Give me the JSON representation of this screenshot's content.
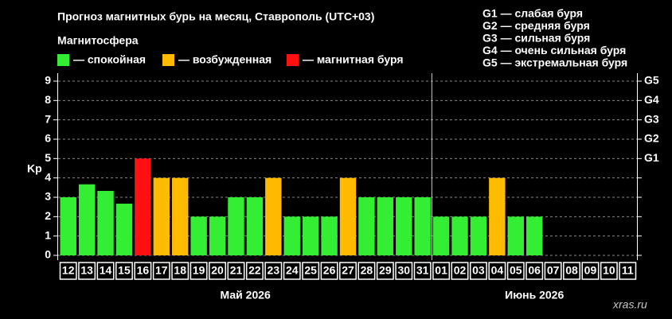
{
  "chart_data": {
    "type": "bar",
    "title": "Прогноз магнитных бурь на месяц, Ставрополь (UTC+03)",
    "legend_title": "Магнитосфера",
    "legend": [
      {
        "label": "— спокойная",
        "color": "#33ee33"
      },
      {
        "label": "— возбужденная",
        "color": "#ffbb00"
      },
      {
        "label": "— магнитная буря",
        "color": "#ff1111"
      }
    ],
    "storm_scale": [
      "G1 — слабая буря",
      "G2 — средняя буря",
      "G3 — сильная буря",
      "G4 — очень сильная буря",
      "G5 — экстремальная буря"
    ],
    "ylabel": "Kp",
    "categories": [
      "12",
      "13",
      "14",
      "15",
      "16",
      "17",
      "18",
      "19",
      "20",
      "21",
      "22",
      "23",
      "24",
      "25",
      "26",
      "27",
      "28",
      "29",
      "30",
      "31",
      "01",
      "02",
      "03",
      "04",
      "05",
      "06",
      "07",
      "08",
      "09",
      "10",
      "11"
    ],
    "values": [
      3,
      3.67,
      3.33,
      2.67,
      5,
      4,
      4,
      2,
      2,
      3,
      3,
      4,
      2,
      2,
      2,
      4,
      3,
      3,
      3,
      3,
      2,
      2,
      2,
      4,
      2,
      2,
      null,
      null,
      null,
      null,
      null
    ],
    "colors": [
      "#33ee33",
      "#33ee33",
      "#33ee33",
      "#33ee33",
      "#ff1111",
      "#ffbb00",
      "#ffbb00",
      "#33ee33",
      "#33ee33",
      "#33ee33",
      "#33ee33",
      "#ffbb00",
      "#33ee33",
      "#33ee33",
      "#33ee33",
      "#ffbb00",
      "#33ee33",
      "#33ee33",
      "#33ee33",
      "#33ee33",
      "#33ee33",
      "#33ee33",
      "#33ee33",
      "#ffbb00",
      "#33ee33",
      "#33ee33",
      null,
      null,
      null,
      null,
      null
    ],
    "months": [
      "Май 2026",
      "Июнь 2026"
    ],
    "ylim": [
      0,
      9
    ],
    "yticks": [
      0,
      1,
      2,
      3,
      4,
      5,
      6,
      7,
      8,
      9
    ],
    "y2lim": [
      0,
      9
    ],
    "y2ticks": [
      {
        "value": 5,
        "label": "G1"
      },
      {
        "value": 6,
        "label": "G2"
      },
      {
        "value": 7,
        "label": "G3"
      },
      {
        "value": 8,
        "label": "G4"
      },
      {
        "value": 9,
        "label": "G5"
      }
    ],
    "grid": true,
    "watermark": "xras.ru"
  }
}
